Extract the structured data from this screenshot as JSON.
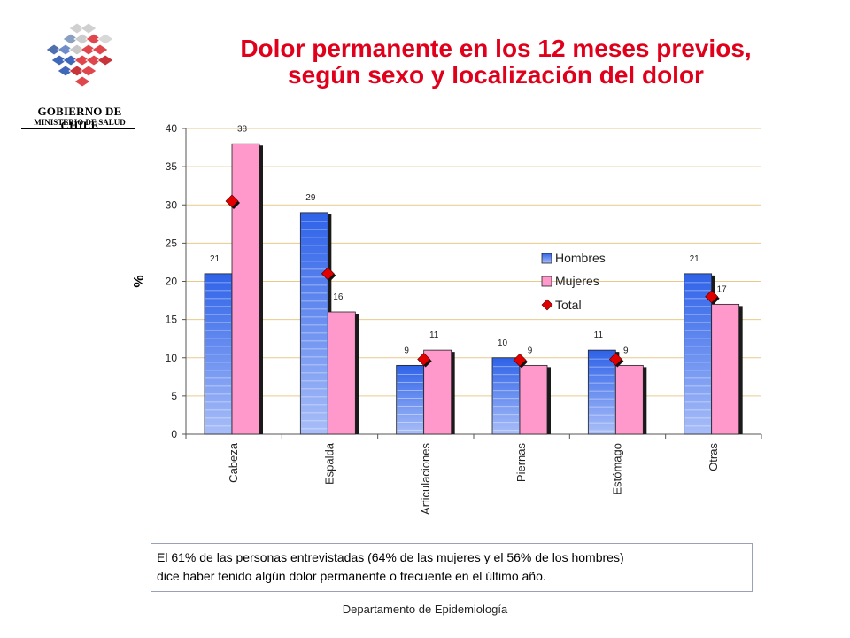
{
  "header": {
    "title_line1": "Dolor permanente en los 12 meses previos,",
    "title_line2": "según sexo y localización del dolor"
  },
  "logo": {
    "line1": "GOBIERNO DE CHILE",
    "line2": "MINISTERIO DE SALUD"
  },
  "chart_data": {
    "type": "bar",
    "categories": [
      "Cabeza",
      "Espalda",
      "Articulaciones",
      "Piernas",
      "Estómago",
      "Otras"
    ],
    "series": [
      {
        "name": "Hombres",
        "type": "bar",
        "color": "#3c6fe6",
        "values": [
          21,
          29,
          9,
          10,
          11,
          21
        ],
        "labels": [
          "21",
          "29",
          "9",
          "10",
          "11",
          "21"
        ]
      },
      {
        "name": "Mujeres",
        "type": "bar",
        "color": "#ff99cc",
        "values": [
          38,
          16,
          11,
          9,
          9,
          17
        ],
        "labels": [
          "38",
          "16",
          "11",
          "9",
          "9",
          "17"
        ]
      },
      {
        "name": "Total",
        "type": "marker",
        "color": "#e00000",
        "values": [
          30.5,
          21,
          9.8,
          9.7,
          9.8,
          18
        ]
      }
    ],
    "xlabel": "",
    "ylabel": "%",
    "ylim": [
      0,
      40
    ],
    "yticks": [
      0,
      5,
      10,
      15,
      20,
      25,
      30,
      35,
      40
    ],
    "grid": true,
    "legend": "right-center"
  },
  "note": {
    "line1": "El 61% de las personas entrevistadas  (64% de las mujeres y el 56% de los hombres)",
    "line2": "dice haber tenido algún dolor permanente  o frecuente en el último año."
  },
  "footer": {
    "text": "Departamento de Epidemiología"
  }
}
